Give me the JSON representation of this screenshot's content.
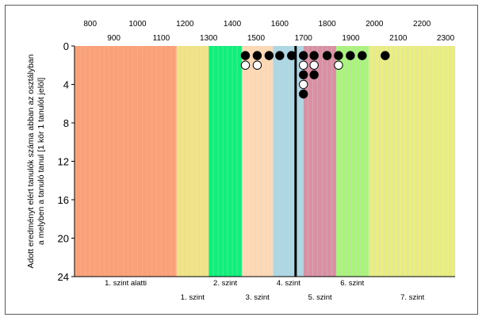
{
  "chart_data": {
    "type": "scatter",
    "title": "",
    "xlabel": "",
    "ylabel_lines": [
      "Adott eredményt elért tanulók száma abban az osztályban",
      "a melyben a tanuló tanul [1 kör 1 tanulót jelöl]"
    ],
    "xlim": [
      734,
      2340
    ],
    "ylim": [
      0,
      24
    ],
    "y_inverted": true,
    "x_ticks_row1": [
      800,
      1000,
      1200,
      1400,
      1600,
      1800,
      2000,
      2200
    ],
    "x_ticks_row2": [
      900,
      1100,
      1300,
      1500,
      1700,
      1900,
      2100,
      2300
    ],
    "y_ticks": [
      0,
      4,
      8,
      12,
      16,
      20,
      24
    ],
    "grid": true,
    "bands": [
      {
        "from": 734,
        "to": 1165,
        "color": "#f9a27a"
      },
      {
        "from": 1165,
        "to": 1300,
        "color": "#f0e38a"
      },
      {
        "from": 1300,
        "to": 1440,
        "color": "#11ef7b"
      },
      {
        "from": 1440,
        "to": 1572,
        "color": "#fed9b4"
      },
      {
        "from": 1572,
        "to": 1700,
        "color": "#acd8e6"
      },
      {
        "from": 1700,
        "to": 1838,
        "color": "#dc8ea3"
      },
      {
        "from": 1838,
        "to": 1975,
        "color": "#a8f57a"
      },
      {
        "from": 1975,
        "to": 2340,
        "color": "#eaee7e"
      }
    ],
    "level_labels_row1": [
      {
        "x": 950,
        "text": "1. szint alatti"
      },
      {
        "x": 1370,
        "text": "2. szint"
      },
      {
        "x": 1637,
        "text": "4. szint"
      },
      {
        "x": 1906,
        "text": "6. szint"
      }
    ],
    "level_labels_row2": [
      {
        "x": 1232,
        "text": "1. szint"
      },
      {
        "x": 1506,
        "text": "3. szint"
      },
      {
        "x": 1770,
        "text": "5. szint"
      },
      {
        "x": 2160,
        "text": "7. szint"
      }
    ],
    "reference_line_x": 1667,
    "series": [
      {
        "marker": "filled",
        "points": [
          [
            1455,
            1
          ],
          [
            1505,
            1
          ],
          [
            1555,
            1
          ],
          [
            1600,
            1
          ],
          [
            1650,
            1
          ],
          [
            1700,
            1
          ],
          [
            1745,
            1
          ],
          [
            1800,
            1
          ],
          [
            1848,
            1
          ],
          [
            1898,
            1
          ],
          [
            1948,
            1
          ],
          [
            2045,
            1
          ],
          [
            1700,
            3
          ],
          [
            1745,
            3
          ],
          [
            1700,
            5
          ]
        ]
      },
      {
        "marker": "hollow",
        "points": [
          [
            1455,
            2
          ],
          [
            1505,
            2
          ],
          [
            1700,
            2
          ],
          [
            1745,
            2
          ],
          [
            1848,
            2
          ],
          [
            1700,
            4
          ]
        ]
      }
    ],
    "colors": {
      "frame": "#5a5a5a",
      "grid": "#cfcfcf",
      "axis": "#000000",
      "text": "#000000",
      "marker_fill": "#000000",
      "hollow_fill": "#ffffff"
    }
  }
}
